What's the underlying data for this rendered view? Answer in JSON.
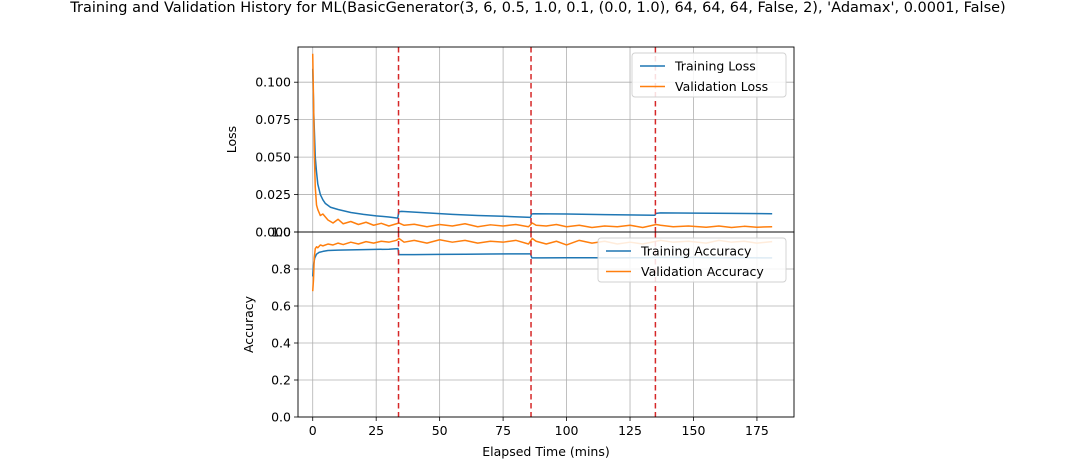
{
  "chart_data": {
    "type": "line",
    "title": "Training and Validation History for ML(BasicGenerator(3, 6, 0.5, 1.0, 0.1, (0.0, 1.0), 64, 64, 64, False, 2), 'Adamax', 0.0001, False)",
    "xlabel": "Elapsed Time (mins)",
    "xlim": [
      -5.8,
      189.6
    ],
    "xticks": [
      0,
      25,
      50,
      75,
      100,
      125,
      150,
      175
    ],
    "vlines": {
      "x": [
        33.8,
        86.0,
        135.0
      ],
      "color": "#d62728",
      "style": "dashed"
    },
    "grid": true,
    "colors": {
      "training": "#1f77b4",
      "validation": "#ff7f0e"
    },
    "panels": [
      {
        "name": "loss",
        "ylabel": "Loss",
        "ylim": [
          0.0,
          0.1235
        ],
        "yticks": [
          0.0,
          0.025,
          0.05,
          0.075,
          0.1
        ],
        "ytick_labels": [
          "0.000",
          "0.025",
          "0.050",
          "0.075",
          "0.100"
        ],
        "legend_loc": "upper right",
        "series": [
          {
            "name": "Training Loss",
            "key": "training",
            "x": [
              0,
              0.4,
              1,
              1.5,
              2,
              3,
              4,
              5,
              7,
              10,
              15,
              20,
              25,
              30,
              33.5,
              33.9,
              35,
              45,
              55,
              65,
              75,
              85.8,
              86.2,
              87,
              100,
              115,
              134.8,
              135.2,
              137,
              150,
              165,
              181
            ],
            "values": [
              0.109,
              0.08,
              0.05,
              0.04,
              0.032,
              0.025,
              0.0215,
              0.019,
              0.0165,
              0.015,
              0.013,
              0.0118,
              0.0108,
              0.01,
              0.0093,
              0.0135,
              0.0138,
              0.0128,
              0.0118,
              0.011,
              0.0105,
              0.0098,
              0.012,
              0.0122,
              0.012,
              0.0116,
              0.0112,
              0.0124,
              0.0128,
              0.0126,
              0.0124,
              0.0122
            ]
          },
          {
            "name": "Validation Loss",
            "key": "validation",
            "x": [
              0,
              0.3,
              0.6,
              1,
              1.5,
              2,
              3,
              4,
              6,
              8,
              10,
              12,
              15,
              18,
              21,
              24,
              27,
              30,
              33,
              34,
              36,
              40,
              45,
              50,
              55,
              60,
              65,
              70,
              75,
              80,
              85,
              86.5,
              88,
              92,
              96,
              100,
              105,
              110,
              115,
              120,
              125,
              130,
              135.3,
              137,
              142,
              148,
              155,
              160,
              165,
              170,
              175,
              181
            ],
            "values": [
              0.119,
              0.09,
              0.055,
              0.03,
              0.018,
              0.015,
              0.011,
              0.012,
              0.008,
              0.006,
              0.0085,
              0.0055,
              0.007,
              0.005,
              0.0065,
              0.0045,
              0.0058,
              0.004,
              0.0055,
              0.006,
              0.0045,
              0.0052,
              0.0035,
              0.005,
              0.004,
              0.0055,
              0.0035,
              0.0048,
              0.004,
              0.005,
              0.0035,
              0.006,
              0.0045,
              0.004,
              0.005,
              0.0035,
              0.0045,
              0.003,
              0.004,
              0.0035,
              0.0045,
              0.003,
              0.005,
              0.0045,
              0.0035,
              0.004,
              0.0032,
              0.004,
              0.003,
              0.0038,
              0.0032,
              0.0035
            ]
          }
        ]
      },
      {
        "name": "accuracy",
        "ylabel": "Accuracy",
        "ylim": [
          0.0,
          1.0
        ],
        "yticks": [
          0.0,
          0.2,
          0.4,
          0.6,
          0.8,
          1.0
        ],
        "ytick_labels": [
          "0.0",
          "0.2",
          "0.4",
          "0.6",
          "0.8",
          "1.0"
        ],
        "legend_loc": "upper right",
        "series": [
          {
            "name": "Training Accuracy",
            "key": "training",
            "x": [
              0,
              0.3,
              0.8,
              1.5,
              2.5,
              4,
              6,
              10,
              20,
              30,
              33.6,
              33.9,
              40,
              50,
              60,
              70,
              80,
              85.8,
              86.3,
              90,
              100,
              110,
              120,
              130,
              135.3,
              140,
              150,
              160,
              170,
              181
            ],
            "values": [
              0.76,
              0.82,
              0.86,
              0.88,
              0.89,
              0.895,
              0.9,
              0.902,
              0.905,
              0.907,
              0.91,
              0.878,
              0.878,
              0.879,
              0.88,
              0.881,
              0.882,
              0.882,
              0.86,
              0.86,
              0.861,
              0.861,
              0.86,
              0.861,
              0.862,
              0.862,
              0.862,
              0.861,
              0.861,
              0.86
            ]
          },
          {
            "name": "Validation Accuracy",
            "key": "validation",
            "x": [
              0,
              0.3,
              0.6,
              1,
              1.5,
              2,
              3,
              4,
              6,
              8,
              10,
              12,
              15,
              18,
              21,
              24,
              27,
              30,
              33,
              34,
              36,
              40,
              45,
              50,
              55,
              60,
              65,
              70,
              75,
              80,
              85,
              86.5,
              88,
              92,
              96,
              100,
              105,
              110,
              115,
              120,
              125,
              130,
              135.3,
              137,
              142,
              148,
              155,
              160,
              165,
              170,
              175,
              181
            ],
            "values": [
              0.68,
              0.74,
              0.86,
              0.91,
              0.92,
              0.915,
              0.93,
              0.925,
              0.935,
              0.93,
              0.94,
              0.932,
              0.945,
              0.935,
              0.948,
              0.94,
              0.95,
              0.945,
              0.955,
              0.965,
              0.945,
              0.955,
              0.94,
              0.958,
              0.945,
              0.955,
              0.94,
              0.95,
              0.945,
              0.955,
              0.935,
              0.965,
              0.95,
              0.935,
              0.95,
              0.93,
              0.955,
              0.94,
              0.95,
              0.935,
              0.945,
              0.935,
              0.95,
              0.955,
              0.945,
              0.95,
              0.94,
              0.955,
              0.945,
              0.95,
              0.94,
              0.948
            ]
          }
        ]
      }
    ]
  }
}
